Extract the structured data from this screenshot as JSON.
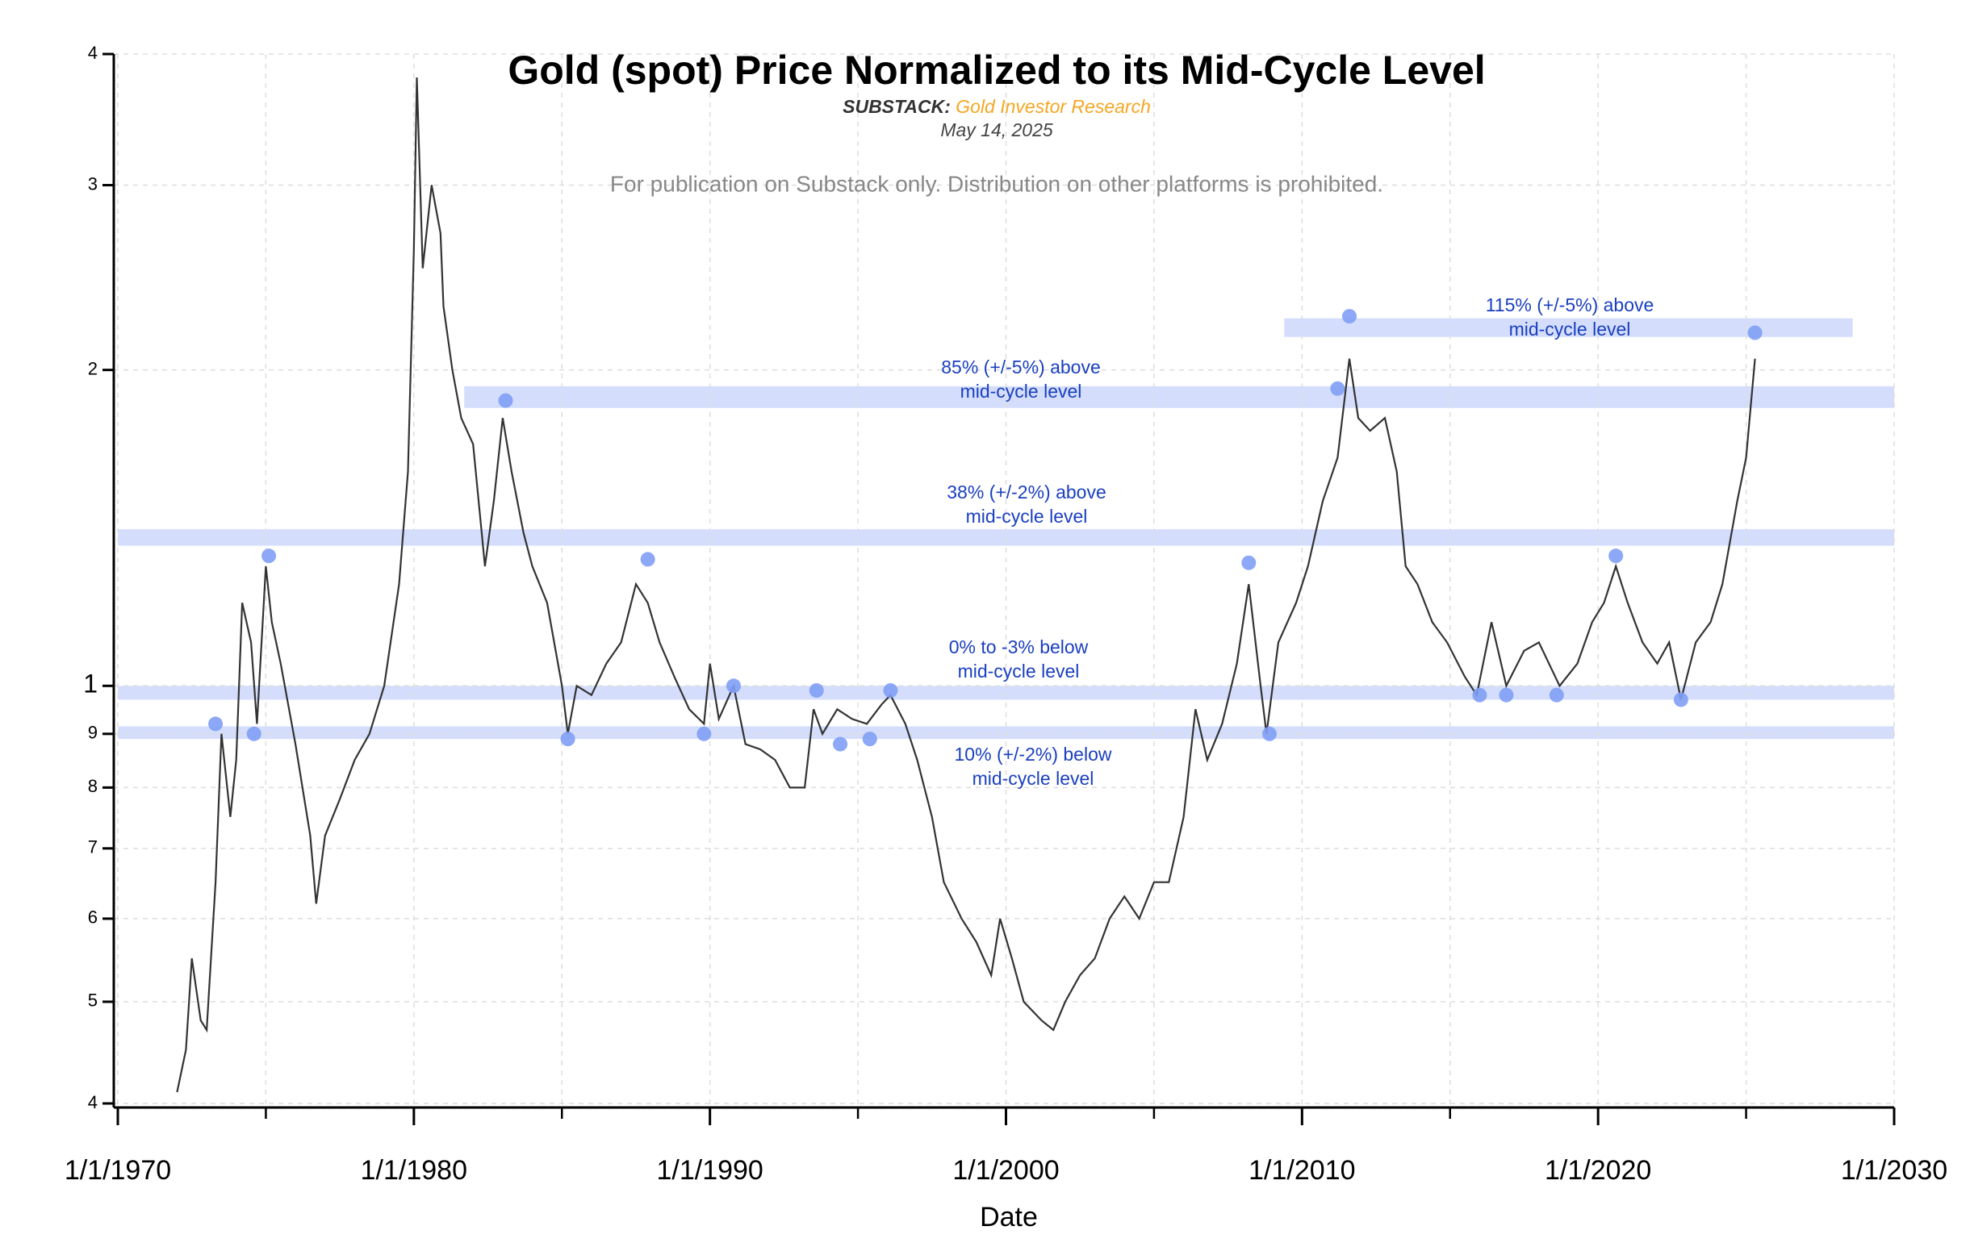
{
  "chart_data": {
    "type": "line",
    "title": "Gold (spot) Price Normalized to its Mid-Cycle Level",
    "subtitle_lead": "SUBSTACK:",
    "subtitle_source": "Gold Investor Research",
    "date": "May 14, 2025",
    "notice": "For publication on Substack only. Distribution on other platforms is prohibited.",
    "x_label": "Date",
    "log_y": true,
    "grid": true,
    "xlim": [
      1970,
      2030
    ],
    "xticks": [
      {
        "value": 1970,
        "label": "1/1/1970"
      },
      {
        "value": 1980,
        "label": "1/1/1980"
      },
      {
        "value": 1990,
        "label": "1/1/1990"
      },
      {
        "value": 2000,
        "label": "1/1/2000"
      },
      {
        "value": 2010,
        "label": "1/1/2010"
      },
      {
        "value": 2020,
        "label": "1/1/2020"
      },
      {
        "value": 2030,
        "label": "1/1/2030"
      }
    ],
    "xminorticks": [
      1975,
      1985,
      1995,
      2005,
      2015,
      2025
    ],
    "ylim": [
      0.4,
      4
    ],
    "yticks": [
      {
        "value": 0.4,
        "label": "4"
      },
      {
        "value": 0.5,
        "label": "5"
      },
      {
        "value": 0.6,
        "label": "6"
      },
      {
        "value": 0.7,
        "label": "7"
      },
      {
        "value": 0.8,
        "label": "8"
      },
      {
        "value": 0.9,
        "label": "9"
      },
      1,
      2,
      3,
      4
    ],
    "series": [
      {
        "color": "#333333",
        "x": [
          1972.0,
          1972.3,
          1972.5,
          1972.8,
          1973.0,
          1973.3,
          1973.5,
          1973.8,
          1974.0,
          1974.2,
          1974.5,
          1974.7,
          1975.0,
          1975.2,
          1975.5,
          1976.0,
          1976.5,
          1976.7,
          1977.0,
          1977.5,
          1978.0,
          1978.5,
          1979.0,
          1979.5,
          1979.8,
          1980.0,
          1980.1,
          1980.3,
          1980.6,
          1980.9,
          1981.0,
          1981.3,
          1981.6,
          1982.0,
          1982.4,
          1982.7,
          1983.0,
          1983.3,
          1983.7,
          1984.0,
          1984.5,
          1985.0,
          1985.2,
          1985.5,
          1986.0,
          1986.5,
          1987.0,
          1987.5,
          1987.9,
          1988.3,
          1988.8,
          1989.3,
          1989.8,
          1990.0,
          1990.3,
          1990.8,
          1991.2,
          1991.7,
          1992.2,
          1992.7,
          1993.2,
          1993.5,
          1993.8,
          1994.3,
          1994.8,
          1995.3,
          1995.8,
          1996.1,
          1996.6,
          1997.0,
          1997.5,
          1997.9,
          1998.5,
          1999.0,
          1999.5,
          1999.8,
          2000.2,
          2000.6,
          2001.2,
          2001.6,
          2002.0,
          2002.5,
          2003.0,
          2003.5,
          2004.0,
          2004.5,
          2005.0,
          2005.5,
          2006.0,
          2006.4,
          2006.8,
          2007.3,
          2007.8,
          2008.2,
          2008.6,
          2008.8,
          2009.2,
          2009.8,
          2010.2,
          2010.7,
          2011.2,
          2011.6,
          2011.9,
          2012.3,
          2012.8,
          2013.2,
          2013.5,
          2013.9,
          2014.4,
          2014.9,
          2015.5,
          2015.9,
          2016.4,
          2016.9,
          2017.5,
          2018.0,
          2018.7,
          2019.3,
          2019.8,
          2020.2,
          2020.6,
          2021.0,
          2021.5,
          2022.0,
          2022.4,
          2022.8,
          2023.3,
          2023.8,
          2024.2,
          2024.7,
          2025.0,
          2025.3
        ],
        "values": [
          0.41,
          0.45,
          0.55,
          0.48,
          0.47,
          0.65,
          0.9,
          0.75,
          0.85,
          1.2,
          1.1,
          0.92,
          1.3,
          1.15,
          1.05,
          0.88,
          0.72,
          0.62,
          0.72,
          0.78,
          0.85,
          0.9,
          1.0,
          1.25,
          1.6,
          2.6,
          3.8,
          2.5,
          3.0,
          2.7,
          2.3,
          2.0,
          1.8,
          1.7,
          1.3,
          1.5,
          1.8,
          1.6,
          1.4,
          1.3,
          1.2,
          1.0,
          0.9,
          1.0,
          0.98,
          1.05,
          1.1,
          1.25,
          1.2,
          1.1,
          1.02,
          0.95,
          0.92,
          1.05,
          0.93,
          1.0,
          0.88,
          0.87,
          0.85,
          0.8,
          0.8,
          0.95,
          0.9,
          0.95,
          0.93,
          0.92,
          0.96,
          0.98,
          0.92,
          0.85,
          0.75,
          0.65,
          0.6,
          0.57,
          0.53,
          0.6,
          0.55,
          0.5,
          0.48,
          0.47,
          0.5,
          0.53,
          0.55,
          0.6,
          0.63,
          0.6,
          0.65,
          0.65,
          0.75,
          0.95,
          0.85,
          0.92,
          1.05,
          1.25,
          1.0,
          0.9,
          1.1,
          1.2,
          1.3,
          1.5,
          1.65,
          2.05,
          1.8,
          1.75,
          1.8,
          1.6,
          1.3,
          1.25,
          1.15,
          1.1,
          1.02,
          0.98,
          1.15,
          1.0,
          1.08,
          1.1,
          1.0,
          1.05,
          1.15,
          1.2,
          1.3,
          1.2,
          1.1,
          1.05,
          1.1,
          0.97,
          1.1,
          1.15,
          1.25,
          1.5,
          1.65,
          2.05
        ]
      }
    ],
    "markers": {
      "color": "#7f9ff5",
      "x": [
        1973.3,
        1974.6,
        1975.1,
        1983.1,
        1985.2,
        1987.9,
        1989.8,
        1990.8,
        1993.6,
        1994.4,
        1995.4,
        1996.1,
        2008.2,
        2008.9,
        2011.2,
        2011.6,
        2016.0,
        2016.9,
        2018.6,
        2020.6,
        2022.8,
        2025.3
      ],
      "values": [
        0.92,
        0.9,
        1.33,
        1.87,
        0.89,
        1.32,
        0.9,
        1.0,
        0.99,
        0.88,
        0.89,
        0.99,
        1.31,
        0.9,
        1.92,
        2.25,
        0.98,
        0.98,
        0.98,
        1.33,
        0.97,
        2.17
      ]
    },
    "bands": [
      {
        "x": [
          1970,
          2030
        ],
        "y": [
          0.89,
          0.915
        ],
        "label": [
          "10% (+/-2%) below",
          "mid-cycle level"
        ]
      },
      {
        "x": [
          1970,
          2030
        ],
        "y": [
          0.97,
          1.0
        ],
        "label": [
          "0% to -3% below",
          "mid-cycle level"
        ]
      },
      {
        "x": [
          1970,
          2030
        ],
        "y": [
          1.36,
          1.41
        ],
        "label": [
          "38% (+/-2%) above",
          "mid-cycle level"
        ]
      },
      {
        "x": [
          1981.7,
          2030
        ],
        "y": [
          1.84,
          1.93
        ],
        "label": [
          "85% (+/-5%) above",
          "mid-cycle level"
        ]
      },
      {
        "x": [
          2009.4,
          2028.6
        ],
        "y": [
          2.15,
          2.24
        ],
        "label": [
          "115% (+/-5%) above",
          "mid-cycle level"
        ]
      }
    ],
    "band_color": "#c9d6fb",
    "annotation_color": "#1a3fc0"
  }
}
